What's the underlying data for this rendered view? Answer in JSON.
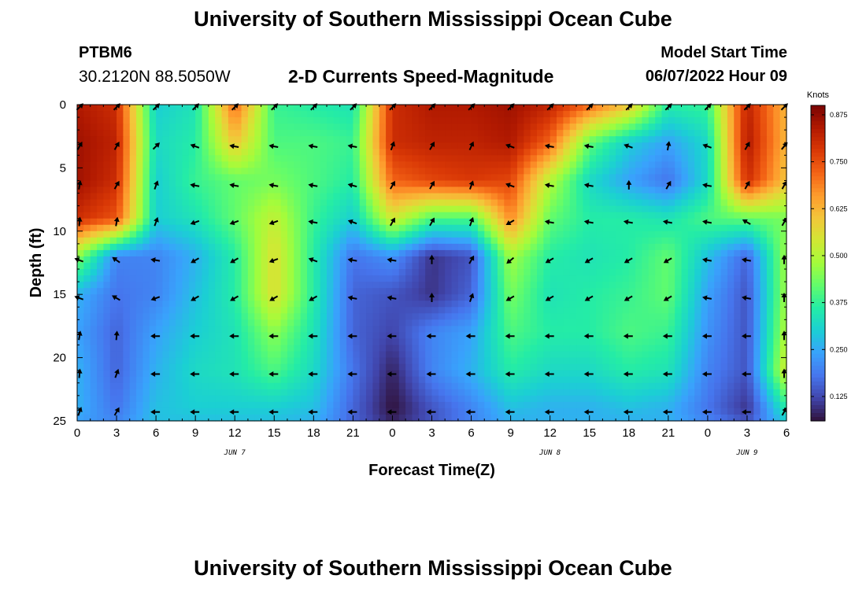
{
  "page": {
    "title_top": "University of Southern Mississippi Ocean Cube",
    "title_bottom": "University of Southern Mississippi Ocean Cube",
    "station_name": "PTBM6",
    "station_coords": "30.2120N  88.5050W",
    "chart_heading": "2-D Currents Speed-Magnitude",
    "model_start_label": "Model Start Time",
    "model_start_value": "06/07/2022 Hour 09"
  },
  "chart_data": {
    "type": "heatmap",
    "title": "2-D Currents Speed-Magnitude",
    "xlabel": "Forecast Time(Z)",
    "ylabel": "Depth (ft)",
    "x_ticks": [
      "0",
      "3",
      "6",
      "9",
      "12",
      "15",
      "18",
      "21",
      "0",
      "3",
      "6",
      "9",
      "12",
      "15",
      "18",
      "21",
      "0",
      "3",
      "6"
    ],
    "x_range_hours": [
      0,
      54
    ],
    "date_labels": [
      {
        "text": "JUN 7",
        "hour": 12
      },
      {
        "text": "JUN 8",
        "hour": 36
      },
      {
        "text": "JUN 9",
        "hour": 51
      }
    ],
    "y_ticks": [
      "0",
      "5",
      "10",
      "15",
      "20",
      "25"
    ],
    "ylim": [
      0,
      25
    ],
    "y_inverted": true,
    "colorbar": {
      "unit_label": "Knots",
      "ticks": [
        "0.125",
        "0.250",
        "0.375",
        "0.500",
        "0.625",
        "0.750",
        "0.875"
      ],
      "range": [
        0.06,
        0.9
      ],
      "colors": [
        "#30123b",
        "#4145ab",
        "#4675ed",
        "#39a2fc",
        "#1bcfd4",
        "#24eca6",
        "#61fc6c",
        "#a4fc3b",
        "#d1e834",
        "#f3c63a",
        "#fe9b2d",
        "#f36315",
        "#d93806",
        "#b11901",
        "#7a0403"
      ]
    },
    "speed_grid": {
      "x_hours": [
        0,
        3,
        6,
        9,
        12,
        15,
        18,
        21,
        24,
        27,
        30,
        33,
        36,
        39,
        42,
        45,
        48,
        51,
        54
      ],
      "depths_ft": [
        0,
        3,
        6,
        9,
        12,
        15,
        18,
        21,
        24,
        25
      ],
      "values": [
        [
          0.84,
          0.8,
          0.3,
          0.34,
          0.72,
          0.38,
          0.36,
          0.34,
          0.8,
          0.84,
          0.84,
          0.86,
          0.82,
          0.72,
          0.6,
          0.36,
          0.38,
          0.82,
          0.62
        ],
        [
          0.86,
          0.82,
          0.32,
          0.36,
          0.6,
          0.4,
          0.4,
          0.38,
          0.8,
          0.82,
          0.82,
          0.84,
          0.72,
          0.42,
          0.3,
          0.24,
          0.32,
          0.84,
          0.62
        ],
        [
          0.86,
          0.8,
          0.3,
          0.38,
          0.42,
          0.44,
          0.4,
          0.36,
          0.72,
          0.76,
          0.78,
          0.76,
          0.5,
          0.32,
          0.24,
          0.18,
          0.32,
          0.8,
          0.6
        ],
        [
          0.8,
          0.74,
          0.3,
          0.34,
          0.42,
          0.52,
          0.38,
          0.3,
          0.54,
          0.4,
          0.4,
          0.68,
          0.42,
          0.36,
          0.36,
          0.34,
          0.4,
          0.42,
          0.44
        ],
        [
          0.46,
          0.2,
          0.2,
          0.26,
          0.36,
          0.56,
          0.36,
          0.18,
          0.22,
          0.1,
          0.14,
          0.48,
          0.36,
          0.34,
          0.36,
          0.42,
          0.28,
          0.16,
          0.48
        ],
        [
          0.26,
          0.18,
          0.2,
          0.28,
          0.36,
          0.56,
          0.36,
          0.16,
          0.14,
          0.1,
          0.16,
          0.44,
          0.34,
          0.36,
          0.38,
          0.42,
          0.24,
          0.14,
          0.48
        ],
        [
          0.24,
          0.16,
          0.24,
          0.3,
          0.34,
          0.46,
          0.34,
          0.16,
          0.12,
          0.2,
          0.24,
          0.4,
          0.36,
          0.36,
          0.4,
          0.38,
          0.22,
          0.14,
          0.5
        ],
        [
          0.26,
          0.16,
          0.26,
          0.32,
          0.34,
          0.4,
          0.32,
          0.18,
          0.08,
          0.2,
          0.26,
          0.36,
          0.32,
          0.32,
          0.36,
          0.34,
          0.2,
          0.14,
          0.54
        ],
        [
          0.26,
          0.18,
          0.28,
          0.3,
          0.3,
          0.3,
          0.28,
          0.16,
          0.06,
          0.14,
          0.2,
          0.28,
          0.26,
          0.26,
          0.28,
          0.26,
          0.18,
          0.1,
          0.36
        ],
        [
          0.24,
          0.2,
          0.28,
          0.28,
          0.28,
          0.28,
          0.26,
          0.16,
          0.08,
          0.14,
          0.2,
          0.26,
          0.26,
          0.26,
          0.26,
          0.26,
          0.2,
          0.14,
          0.3
        ]
      ]
    },
    "arrows": {
      "x_hours": [
        0,
        3,
        6,
        9,
        12,
        15,
        18,
        21,
        24,
        27,
        30,
        33,
        36,
        39,
        42,
        45,
        48,
        51,
        54
      ],
      "depths_ft": [
        0.2,
        3.3,
        6.4,
        9.3,
        12.3,
        15.3,
        18.3,
        21.3,
        24.3
      ],
      "angles_deg": [
        [
          135,
          135,
          135,
          135,
          135,
          135,
          135,
          135,
          135,
          135,
          135,
          135,
          135,
          135,
          135,
          135,
          135,
          135,
          135
        ],
        [
          120,
          120,
          135,
          20,
          10,
          10,
          10,
          10,
          110,
          120,
          115,
          20,
          10,
          10,
          20,
          100,
          20,
          120,
          130
        ],
        [
          100,
          120,
          110,
          10,
          10,
          10,
          10,
          15,
          120,
          120,
          110,
          20,
          10,
          10,
          90,
          120,
          10,
          120,
          120
        ],
        [
          95,
          100,
          110,
          340,
          340,
          340,
          10,
          20,
          120,
          120,
          110,
          330,
          10,
          10,
          10,
          10,
          10,
          30,
          120
        ],
        [
          20,
          35,
          10,
          330,
          330,
          340,
          20,
          10,
          10,
          90,
          120,
          320,
          330,
          330,
          330,
          330,
          10,
          10,
          90
        ],
        [
          20,
          30,
          340,
          330,
          330,
          330,
          330,
          10,
          10,
          90,
          110,
          330,
          330,
          330,
          330,
          330,
          10,
          10,
          90
        ],
        [
          100,
          95,
          0,
          0,
          0,
          0,
          0,
          0,
          0,
          0,
          0,
          0,
          0,
          0,
          0,
          0,
          0,
          0,
          90
        ],
        [
          95,
          110,
          0,
          0,
          0,
          0,
          0,
          0,
          0,
          0,
          0,
          0,
          0,
          0,
          0,
          0,
          0,
          0,
          90
        ],
        [
          110,
          120,
          0,
          0,
          0,
          0,
          0,
          0,
          0,
          0,
          0,
          0,
          0,
          0,
          0,
          0,
          0,
          0,
          120
        ]
      ]
    }
  }
}
